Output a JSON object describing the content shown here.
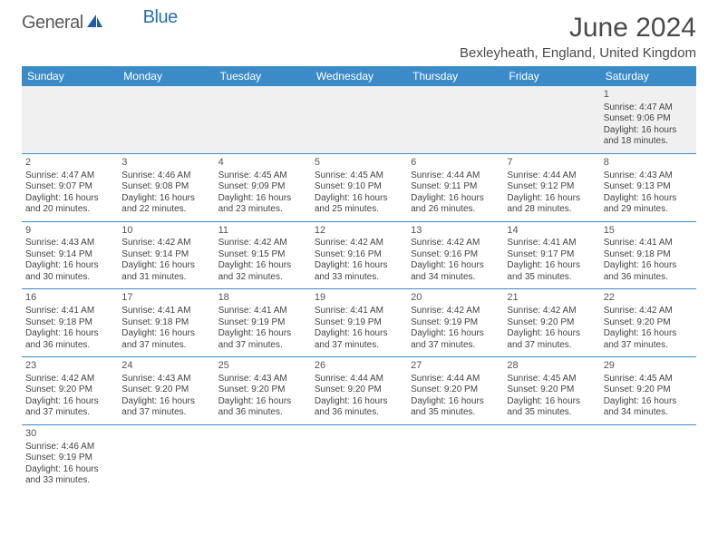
{
  "brand": {
    "part1": "General",
    "part2": "Blue"
  },
  "title": "June 2024",
  "subtitle": "Bexleyheath, England, United Kingdom",
  "colors": {
    "header_bg": "#3b8bc9",
    "header_text": "#ffffff",
    "cell_border": "#3b8bc9",
    "empty_bg": "#f0f0f0",
    "logo_gray": "#5a5a5a",
    "logo_blue": "#2b6fb0"
  },
  "day_headers": [
    "Sunday",
    "Monday",
    "Tuesday",
    "Wednesday",
    "Thursday",
    "Friday",
    "Saturday"
  ],
  "weeks": [
    [
      null,
      null,
      null,
      null,
      null,
      null,
      {
        "day": "1",
        "sunrise": "4:47 AM",
        "sunset": "9:06 PM",
        "daylight": "16 hours and 18 minutes."
      }
    ],
    [
      {
        "day": "2",
        "sunrise": "4:47 AM",
        "sunset": "9:07 PM",
        "daylight": "16 hours and 20 minutes."
      },
      {
        "day": "3",
        "sunrise": "4:46 AM",
        "sunset": "9:08 PM",
        "daylight": "16 hours and 22 minutes."
      },
      {
        "day": "4",
        "sunrise": "4:45 AM",
        "sunset": "9:09 PM",
        "daylight": "16 hours and 23 minutes."
      },
      {
        "day": "5",
        "sunrise": "4:45 AM",
        "sunset": "9:10 PM",
        "daylight": "16 hours and 25 minutes."
      },
      {
        "day": "6",
        "sunrise": "4:44 AM",
        "sunset": "9:11 PM",
        "daylight": "16 hours and 26 minutes."
      },
      {
        "day": "7",
        "sunrise": "4:44 AM",
        "sunset": "9:12 PM",
        "daylight": "16 hours and 28 minutes."
      },
      {
        "day": "8",
        "sunrise": "4:43 AM",
        "sunset": "9:13 PM",
        "daylight": "16 hours and 29 minutes."
      }
    ],
    [
      {
        "day": "9",
        "sunrise": "4:43 AM",
        "sunset": "9:14 PM",
        "daylight": "16 hours and 30 minutes."
      },
      {
        "day": "10",
        "sunrise": "4:42 AM",
        "sunset": "9:14 PM",
        "daylight": "16 hours and 31 minutes."
      },
      {
        "day": "11",
        "sunrise": "4:42 AM",
        "sunset": "9:15 PM",
        "daylight": "16 hours and 32 minutes."
      },
      {
        "day": "12",
        "sunrise": "4:42 AM",
        "sunset": "9:16 PM",
        "daylight": "16 hours and 33 minutes."
      },
      {
        "day": "13",
        "sunrise": "4:42 AM",
        "sunset": "9:16 PM",
        "daylight": "16 hours and 34 minutes."
      },
      {
        "day": "14",
        "sunrise": "4:41 AM",
        "sunset": "9:17 PM",
        "daylight": "16 hours and 35 minutes."
      },
      {
        "day": "15",
        "sunrise": "4:41 AM",
        "sunset": "9:18 PM",
        "daylight": "16 hours and 36 minutes."
      }
    ],
    [
      {
        "day": "16",
        "sunrise": "4:41 AM",
        "sunset": "9:18 PM",
        "daylight": "16 hours and 36 minutes."
      },
      {
        "day": "17",
        "sunrise": "4:41 AM",
        "sunset": "9:18 PM",
        "daylight": "16 hours and 37 minutes."
      },
      {
        "day": "18",
        "sunrise": "4:41 AM",
        "sunset": "9:19 PM",
        "daylight": "16 hours and 37 minutes."
      },
      {
        "day": "19",
        "sunrise": "4:41 AM",
        "sunset": "9:19 PM",
        "daylight": "16 hours and 37 minutes."
      },
      {
        "day": "20",
        "sunrise": "4:42 AM",
        "sunset": "9:19 PM",
        "daylight": "16 hours and 37 minutes."
      },
      {
        "day": "21",
        "sunrise": "4:42 AM",
        "sunset": "9:20 PM",
        "daylight": "16 hours and 37 minutes."
      },
      {
        "day": "22",
        "sunrise": "4:42 AM",
        "sunset": "9:20 PM",
        "daylight": "16 hours and 37 minutes."
      }
    ],
    [
      {
        "day": "23",
        "sunrise": "4:42 AM",
        "sunset": "9:20 PM",
        "daylight": "16 hours and 37 minutes."
      },
      {
        "day": "24",
        "sunrise": "4:43 AM",
        "sunset": "9:20 PM",
        "daylight": "16 hours and 37 minutes."
      },
      {
        "day": "25",
        "sunrise": "4:43 AM",
        "sunset": "9:20 PM",
        "daylight": "16 hours and 36 minutes."
      },
      {
        "day": "26",
        "sunrise": "4:44 AM",
        "sunset": "9:20 PM",
        "daylight": "16 hours and 36 minutes."
      },
      {
        "day": "27",
        "sunrise": "4:44 AM",
        "sunset": "9:20 PM",
        "daylight": "16 hours and 35 minutes."
      },
      {
        "day": "28",
        "sunrise": "4:45 AM",
        "sunset": "9:20 PM",
        "daylight": "16 hours and 35 minutes."
      },
      {
        "day": "29",
        "sunrise": "4:45 AM",
        "sunset": "9:20 PM",
        "daylight": "16 hours and 34 minutes."
      }
    ],
    [
      {
        "day": "30",
        "sunrise": "4:46 AM",
        "sunset": "9:19 PM",
        "daylight": "16 hours and 33 minutes."
      },
      null,
      null,
      null,
      null,
      null,
      null
    ]
  ],
  "labels": {
    "sunrise": "Sunrise:",
    "sunset": "Sunset:",
    "daylight": "Daylight:"
  }
}
